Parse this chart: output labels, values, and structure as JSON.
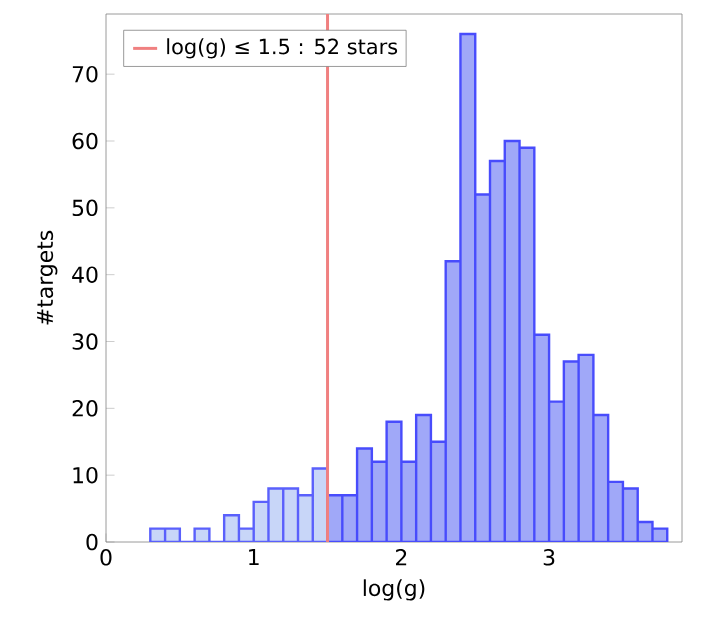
{
  "chart_data": {
    "type": "histogram",
    "xlabel": "log(g)",
    "ylabel": "#targets",
    "xlim": [
      0,
      3.9
    ],
    "ylim": [
      0,
      79
    ],
    "xticks": [
      0,
      1,
      2,
      3
    ],
    "yticks": [
      0,
      10,
      20,
      30,
      40,
      50,
      60,
      70
    ],
    "grid": false,
    "bins": [
      0.3,
      0.4,
      0.5,
      0.6,
      0.7,
      0.8,
      0.9,
      1.0,
      1.1,
      1.2,
      1.3,
      1.4,
      1.5,
      1.6,
      1.7,
      1.8,
      1.9,
      2.0,
      2.1,
      2.2,
      2.3,
      2.4,
      2.5,
      2.6,
      2.7,
      2.8,
      2.9,
      3.0,
      3.1,
      3.2,
      3.3,
      3.4,
      3.5,
      3.6,
      3.7,
      3.8
    ],
    "series": [
      {
        "color": "#c8d6f8",
        "values": [
          2,
          2,
          0,
          2,
          0,
          4,
          2,
          6,
          8,
          8,
          7,
          11,
          null,
          null,
          null,
          null,
          null,
          null,
          null,
          null,
          null,
          null,
          null,
          null,
          null,
          null,
          null,
          null,
          null,
          null,
          null,
          null,
          null,
          null,
          null
        ]
      },
      {
        "color": "#a0a8f8",
        "values": [
          null,
          null,
          null,
          null,
          null,
          null,
          null,
          null,
          null,
          null,
          null,
          null,
          7,
          7,
          14,
          12,
          18,
          12,
          19,
          15,
          42,
          76,
          52,
          57,
          60,
          59,
          31,
          21,
          27,
          28,
          19,
          9,
          8,
          3,
          2
        ]
      }
    ],
    "ref_lines": [
      {
        "axis": "x",
        "value": 1.5,
        "label": "log(g) ≤ 1.5 : 52 stars",
        "color": "#f08080"
      }
    ]
  }
}
